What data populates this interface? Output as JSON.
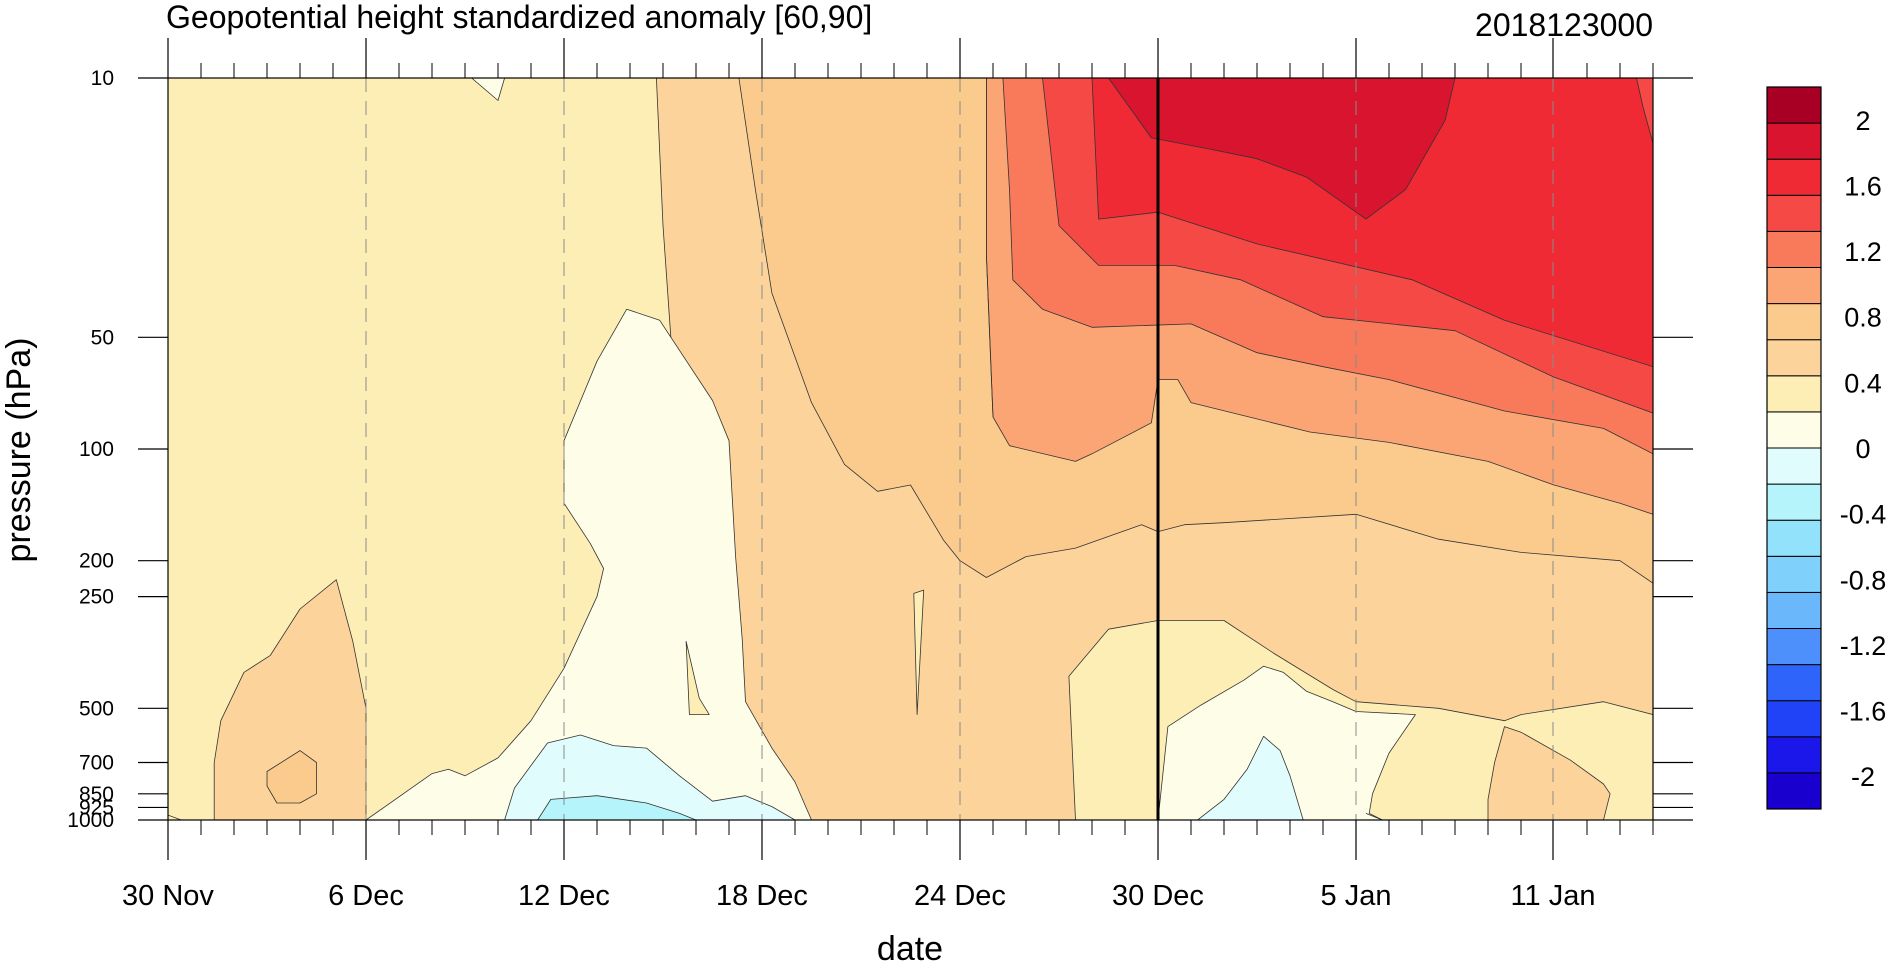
{
  "chart_data": {
    "type": "heatmap",
    "subtype": "contour",
    "title": "Geopotential height standardized anomaly [60,90]",
    "date_stamp": "2018123000",
    "xlabel": "date",
    "ylabel": "pressure (hPa)",
    "x_ticks": [
      {
        "day": 0,
        "label": "30 Nov"
      },
      {
        "day": 6,
        "label": "6 Dec"
      },
      {
        "day": 12,
        "label": "12 Dec"
      },
      {
        "day": 18,
        "label": "18 Dec"
      },
      {
        "day": 24,
        "label": "24 Dec"
      },
      {
        "day": 30,
        "label": "30 Dec"
      },
      {
        "day": 36,
        "label": "5 Jan"
      },
      {
        "day": 42,
        "label": "11 Jan"
      }
    ],
    "x_range_days": [
      0,
      45
    ],
    "y_ticks": [
      {
        "p": 10,
        "label": "10"
      },
      {
        "p": 50,
        "label": "50"
      },
      {
        "p": 100,
        "label": "100"
      },
      {
        "p": 200,
        "label": "200"
      },
      {
        "p": 250,
        "label": "250"
      },
      {
        "p": 500,
        "label": "500"
      },
      {
        "p": 700,
        "label": "700"
      },
      {
        "p": 850,
        "label": "850"
      },
      {
        "p": 925,
        "label": "925"
      },
      {
        "p": 1000,
        "label": "1000"
      }
    ],
    "y_scale": "log",
    "y_range_hPa": [
      10,
      1000
    ],
    "current_date_marker_day": 30,
    "colorbar": {
      "levels": [
        -2.2,
        -2,
        -1.8,
        -1.6,
        -1.4,
        -1.2,
        -1,
        -0.8,
        -0.6,
        -0.4,
        -0.2,
        0,
        0.2,
        0.4,
        0.6,
        0.8,
        1,
        1.2,
        1.4,
        1.6,
        1.8,
        2,
        2.2
      ],
      "colors": [
        "#1a00cf",
        "#1b16ea",
        "#2143f7",
        "#2f64fa",
        "#4d8ffb",
        "#6bb7fb",
        "#7fd0fb",
        "#93e2fb",
        "#b6f4fc",
        "#e1fcfd",
        "#fefde8",
        "#fdeeb6",
        "#fcd49b",
        "#fbcb8e",
        "#fba574",
        "#f87a5b",
        "#f54946",
        "#ef2a34",
        "#d9142f",
        "#a80024"
      ],
      "labels": [
        {
          "v": 2,
          "text": "2"
        },
        {
          "v": 1.6,
          "text": "1.6"
        },
        {
          "v": 1.2,
          "text": "1.2"
        },
        {
          "v": 0.8,
          "text": "0.8"
        },
        {
          "v": 0.4,
          "text": "0.4"
        },
        {
          "v": 0,
          "text": "0"
        },
        {
          "v": -0.4,
          "text": "-0.4"
        },
        {
          "v": -0.8,
          "text": "-0.8"
        },
        {
          "v": -1.2,
          "text": "-1.2"
        },
        {
          "v": -1.6,
          "text": "-1.6"
        },
        {
          "v": -2,
          "text": "-2"
        }
      ]
    },
    "regions": [
      {
        "name": "background",
        "value": 0.1,
        "poly": [
          [
            0,
            10
          ],
          [
            45,
            10
          ],
          [
            45,
            1000
          ],
          [
            0,
            1000
          ]
        ]
      },
      {
        "name": "warm-0.2-0.4-main",
        "value": 0.3,
        "poly": [
          [
            14.8,
            10
          ],
          [
            45,
            10
          ],
          [
            45,
            520
          ],
          [
            43.5,
            480
          ],
          [
            41,
            520
          ],
          [
            40.5,
            540
          ],
          [
            38.5,
            500
          ],
          [
            36,
            480
          ],
          [
            35.3,
            445
          ],
          [
            33.5,
            355
          ],
          [
            32,
            290
          ],
          [
            30,
            290
          ],
          [
            28.5,
            306
          ],
          [
            27.3,
            410
          ],
          [
            27.5,
            1000
          ],
          [
            19.5,
            1000
          ],
          [
            18.8,
            820
          ],
          [
            18,
            620
          ],
          [
            17,
            420
          ],
          [
            16.5,
            320
          ],
          [
            16,
            230
          ],
          [
            15.6,
            130
          ],
          [
            15.3,
            60
          ],
          [
            15,
            25
          ]
        ]
      },
      {
        "name": "warm-0.4-0.6-main",
        "value": 0.5,
        "poly": [
          [
            17.3,
            10
          ],
          [
            45,
            10
          ],
          [
            45,
            230
          ],
          [
            44,
            200
          ],
          [
            41,
            190
          ],
          [
            38.5,
            175
          ],
          [
            36,
            150
          ],
          [
            32,
            158
          ],
          [
            30.8,
            160
          ],
          [
            30,
            167
          ],
          [
            29.5,
            160
          ],
          [
            27.5,
            185
          ],
          [
            26,
            195
          ],
          [
            24.8,
            222
          ],
          [
            24,
            200
          ],
          [
            23.5,
            176
          ],
          [
            22.5,
            125
          ],
          [
            21.5,
            130
          ],
          [
            20.5,
            110
          ],
          [
            19.5,
            75
          ],
          [
            18.3,
            38
          ],
          [
            17.8,
            20
          ]
        ]
      },
      {
        "name": "warm-0.6-0.8",
        "value": 0.7,
        "poly": [
          [
            24.8,
            10
          ],
          [
            45,
            10
          ],
          [
            45,
            150
          ],
          [
            44,
            140
          ],
          [
            42,
            125
          ],
          [
            40,
            108
          ],
          [
            37,
            96
          ],
          [
            34.6,
            90
          ],
          [
            31,
            75
          ],
          [
            30.6,
            65
          ],
          [
            30,
            65
          ],
          [
            29.8,
            85
          ],
          [
            28,
            103
          ],
          [
            27.5,
            108
          ],
          [
            25.5,
            98
          ],
          [
            25,
            82
          ],
          [
            24.8,
            30
          ]
        ]
      },
      {
        "name": "warm-0.8-1.0",
        "value": 0.9,
        "poly": [
          [
            25.3,
            10
          ],
          [
            45,
            10
          ],
          [
            45,
            103
          ],
          [
            43.5,
            88
          ],
          [
            40.5,
            79
          ],
          [
            37,
            65
          ],
          [
            35,
            60
          ],
          [
            33,
            55
          ],
          [
            31,
            46
          ],
          [
            28,
            47
          ],
          [
            26.5,
            42
          ],
          [
            25.6,
            35
          ],
          [
            25.5,
            20
          ]
        ]
      },
      {
        "name": "warm-1.0-1.2",
        "value": 1.1,
        "poly": [
          [
            26.5,
            10
          ],
          [
            45,
            10
          ],
          [
            45,
            80
          ],
          [
            42,
            64
          ],
          [
            39,
            48
          ],
          [
            35,
            44
          ],
          [
            32.5,
            35
          ],
          [
            30.5,
            32
          ],
          [
            28.2,
            32
          ],
          [
            27,
            25
          ]
        ]
      },
      {
        "name": "warm-1.2-1.4",
        "value": 1.3,
        "poly": [
          [
            28,
            10
          ],
          [
            45,
            10
          ],
          [
            45,
            60
          ],
          [
            40.5,
            45
          ],
          [
            37.7,
            35
          ],
          [
            33,
            28
          ],
          [
            30,
            23
          ],
          [
            28.2,
            24
          ]
        ]
      },
      {
        "name": "warm-1.4-1.6-top",
        "value": 1.5,
        "poly": [
          [
            28.5,
            10
          ],
          [
            39,
            10
          ],
          [
            38.7,
            13
          ],
          [
            37.5,
            20
          ],
          [
            36.3,
            24
          ],
          [
            34.5,
            18.5
          ],
          [
            33,
            16.5
          ],
          [
            31.5,
            15.5
          ],
          [
            29.8,
            14.5
          ]
        ]
      },
      {
        "name": "warm-1.0-1.2-right-edge",
        "value": 1.1,
        "poly": [
          [
            44.5,
            10
          ],
          [
            45,
            10
          ],
          [
            45,
            15
          ],
          [
            44.7,
            12
          ]
        ]
      },
      {
        "name": "warm-0.2-0.4-lowleft",
        "value": 0.3,
        "poly": [
          [
            1.4,
            1000
          ],
          [
            1.4,
            700
          ],
          [
            1.6,
            540
          ],
          [
            2.3,
            400
          ],
          [
            3.1,
            360
          ],
          [
            4.0,
            270
          ],
          [
            5.1,
            225
          ],
          [
            5.6,
            330
          ],
          [
            6.0,
            500
          ],
          [
            6.0,
            1000
          ]
        ]
      },
      {
        "name": "warm-0.4-0.6-lowleft",
        "value": 0.5,
        "poly": [
          [
            3.0,
            810
          ],
          [
            3.0,
            740
          ],
          [
            4.0,
            650
          ],
          [
            4.5,
            700
          ],
          [
            4.5,
            850
          ],
          [
            4.0,
            900
          ],
          [
            3.3,
            900
          ]
        ]
      },
      {
        "name": "warm-0.2-0.4-lowright",
        "value": 0.3,
        "poly": [
          [
            40.0,
            1000
          ],
          [
            40.0,
            880
          ],
          [
            40.2,
            700
          ],
          [
            40.5,
            560
          ],
          [
            41,
            580
          ],
          [
            42.5,
            690
          ],
          [
            43.5,
            800
          ],
          [
            43.7,
            850
          ],
          [
            43.5,
            1000
          ]
        ]
      },
      {
        "name": "cool-center",
        "value": -0.1,
        "poly": [
          [
            6,
            1000
          ],
          [
            8,
            750
          ],
          [
            8.5,
            730
          ],
          [
            9,
            760
          ],
          [
            10,
            680
          ],
          [
            11,
            540
          ],
          [
            12,
            390
          ],
          [
            13,
            250
          ],
          [
            13.2,
            210
          ],
          [
            12.8,
            180
          ],
          [
            12,
            140
          ],
          [
            12,
            95
          ],
          [
            13,
            58
          ],
          [
            13.9,
            42
          ],
          [
            14.9,
            45
          ],
          [
            16.5,
            74
          ],
          [
            17,
            95
          ],
          [
            17.2,
            195
          ],
          [
            17.4,
            325
          ],
          [
            17.5,
            480
          ],
          [
            18.3,
            640
          ],
          [
            19,
            790
          ],
          [
            19.5,
            1000
          ]
        ]
      },
      {
        "name": "cool-center-light",
        "value": -0.3,
        "poly": [
          [
            10.2,
            1000
          ],
          [
            10.5,
            820
          ],
          [
            11.5,
            620
          ],
          [
            12.5,
            590
          ],
          [
            13.5,
            630
          ],
          [
            14.5,
            640
          ],
          [
            15.5,
            760
          ],
          [
            16.5,
            890
          ],
          [
            17.5,
            860
          ],
          [
            18.3,
            920
          ],
          [
            19,
            1000
          ]
        ]
      },
      {
        "name": "cool-center-mid",
        "value": -0.5,
        "poly": [
          [
            11.2,
            1000
          ],
          [
            11.6,
            880
          ],
          [
            13,
            860
          ],
          [
            14.5,
            900
          ],
          [
            15.5,
            960
          ],
          [
            16,
            1000
          ]
        ]
      },
      {
        "name": "cool-right",
        "value": -0.1,
        "poly": [
          [
            30,
            1000
          ],
          [
            30.3,
            560
          ],
          [
            31.3,
            490
          ],
          [
            32.6,
            420
          ],
          [
            33.2,
            385
          ],
          [
            33.8,
            400
          ],
          [
            34.5,
            450
          ],
          [
            35.3,
            480
          ],
          [
            36,
            510
          ],
          [
            37.8,
            520
          ],
          [
            37,
            660
          ],
          [
            36.5,
            850
          ],
          [
            36.4,
            960
          ],
          [
            36.8,
            1000
          ]
        ]
      },
      {
        "name": "cool-right-light",
        "value": -0.3,
        "poly": [
          [
            31.2,
            1000
          ],
          [
            32,
            880
          ],
          [
            32.7,
            730
          ],
          [
            33.2,
            595
          ],
          [
            33.7,
            650
          ],
          [
            34,
            760
          ],
          [
            34.4,
            1000
          ]
        ]
      },
      {
        "name": "cool-top-tiny",
        "value": -0.1,
        "poly": [
          [
            9.2,
            10
          ],
          [
            10.2,
            10
          ],
          [
            10.0,
            11.5
          ]
        ]
      },
      {
        "name": "cool-18dec-sliver",
        "value": 0.1,
        "poly": [
          [
            15.7,
            330
          ],
          [
            16.1,
            470
          ],
          [
            16.4,
            520
          ],
          [
            15.8,
            520
          ]
        ]
      },
      {
        "name": "sliver-24dec",
        "value": 0.1,
        "poly": [
          [
            22.6,
            245
          ],
          [
            22.9,
            240
          ],
          [
            22.7,
            520
          ]
        ]
      }
    ],
    "contour_lines": [
      [
        [
          0,
          970
        ],
        [
          0.4,
          1000
        ]
      ],
      [
        [
          36.3,
          960
        ],
        [
          36.8,
          1000
        ]
      ],
      [
        [
          24.8,
          10
        ],
        [
          24.8,
          30
        ],
        [
          25,
          82
        ]
      ]
    ]
  }
}
